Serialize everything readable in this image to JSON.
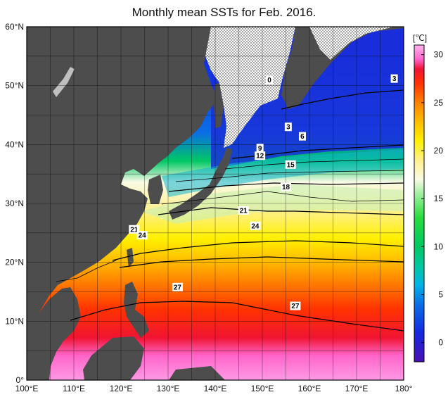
{
  "title": "Monthly mean SSTs for Feb. 2016.",
  "map": {
    "lon_range": [
      100,
      180
    ],
    "lat_range": [
      0,
      60
    ],
    "lon_ticks": [
      "100°E",
      "110°E",
      "120°E",
      "130°E",
      "140°E",
      "150°E",
      "160°E",
      "170°E",
      "180°"
    ],
    "lat_ticks": [
      "0°",
      "10°N",
      "20°N",
      "30°N",
      "40°N",
      "50°N",
      "60°N"
    ],
    "land_color": "#4d4d4d",
    "sea_ice": "dotted",
    "contour_labels": [
      {
        "value": "0",
        "lon": 151.5,
        "lat": 51.0
      },
      {
        "value": "3",
        "lon": 178.0,
        "lat": 51.2
      },
      {
        "value": "3",
        "lon": 155.5,
        "lat": 43.0
      },
      {
        "value": "6",
        "lon": 158.5,
        "lat": 41.4
      },
      {
        "value": "9",
        "lon": 149.5,
        "lat": 39.4
      },
      {
        "value": "12",
        "lon": 149.5,
        "lat": 38.1
      },
      {
        "value": "15",
        "lon": 156.0,
        "lat": 36.6
      },
      {
        "value": "18",
        "lon": 155.0,
        "lat": 32.8
      },
      {
        "value": "21",
        "lon": 146.0,
        "lat": 28.8
      },
      {
        "value": "24",
        "lon": 148.5,
        "lat": 26.2
      },
      {
        "value": "21",
        "lon": 122.8,
        "lat": 25.6
      },
      {
        "value": "24",
        "lon": 124.5,
        "lat": 24.6
      },
      {
        "value": "27",
        "lon": 132.0,
        "lat": 15.8
      },
      {
        "value": "27",
        "lon": 157.0,
        "lat": 12.6
      }
    ]
  },
  "colorbar": {
    "unit": "[℃]",
    "range": [
      -2,
      31
    ],
    "ticks": [
      "30",
      "25",
      "20",
      "15",
      "10",
      "5",
      "0"
    ],
    "tick_values": [
      30,
      25,
      20,
      15,
      10,
      5,
      0
    ],
    "colors": [
      {
        "value": -2,
        "color": "#4b0fb4"
      },
      {
        "value": 1,
        "color": "#1428e0"
      },
      {
        "value": 4,
        "color": "#0a6ee6"
      },
      {
        "value": 6,
        "color": "#00b4e6"
      },
      {
        "value": 8,
        "color": "#00c8a0"
      },
      {
        "value": 10,
        "color": "#00c864"
      },
      {
        "value": 13,
        "color": "#28dc3c"
      },
      {
        "value": 15.5,
        "color": "#a0f0a0"
      },
      {
        "value": 17,
        "color": "#fafae6"
      },
      {
        "value": 19,
        "color": "#fff08c"
      },
      {
        "value": 21,
        "color": "#fff000"
      },
      {
        "value": 23,
        "color": "#ffbe00"
      },
      {
        "value": 25,
        "color": "#ff8200"
      },
      {
        "value": 27,
        "color": "#ff3200"
      },
      {
        "value": 28.5,
        "color": "#f01432"
      },
      {
        "value": 29.5,
        "color": "#ff64c8"
      },
      {
        "value": 31,
        "color": "#ffb4f0"
      }
    ]
  }
}
